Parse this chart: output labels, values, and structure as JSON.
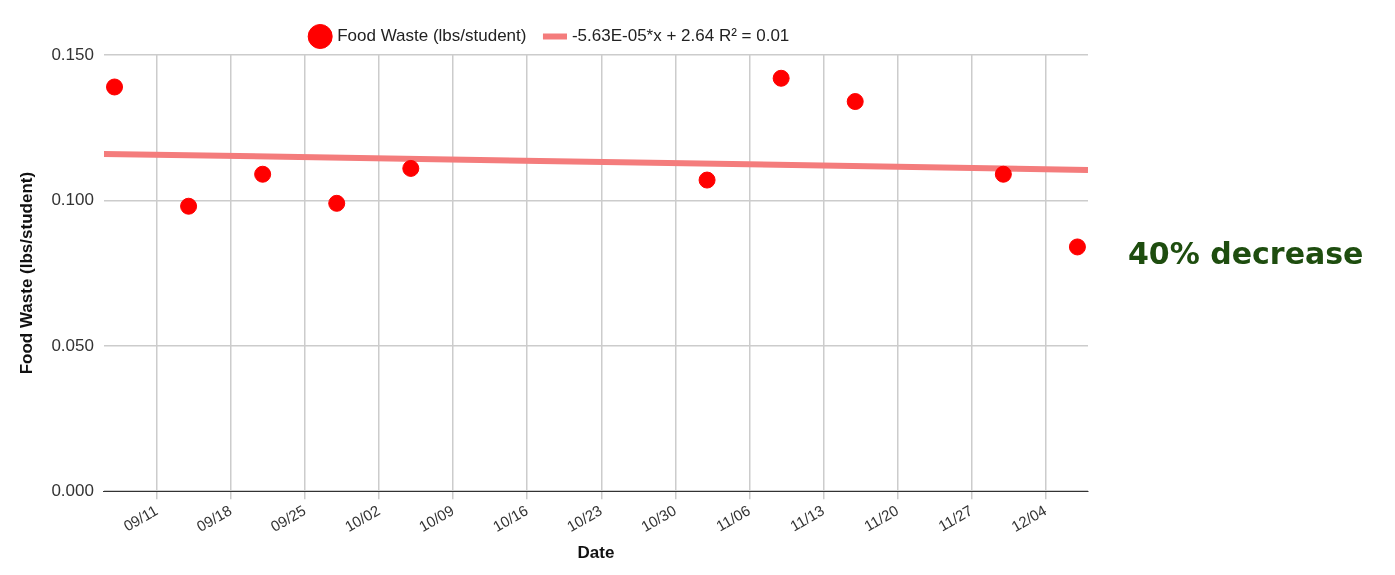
{
  "chart_data": {
    "type": "scatter",
    "xlabel": "Date",
    "ylabel": "Food Waste (lbs/student)",
    "xlim": [
      "--09-06",
      "--12-08"
    ],
    "xticks": [
      {
        "value": "--09-11",
        "label": "09/11"
      },
      {
        "value": "--09-18",
        "label": "09/18"
      },
      {
        "value": "--09-25",
        "label": "09/25"
      },
      {
        "value": "--10-02",
        "label": "10/02"
      },
      {
        "value": "--10-09",
        "label": "10/09"
      },
      {
        "value": "--10-16",
        "label": "10/16"
      },
      {
        "value": "--10-23",
        "label": "10/23"
      },
      {
        "value": "--10-30",
        "label": "10/30"
      },
      {
        "value": "--11-06",
        "label": "11/06"
      },
      {
        "value": "--11-13",
        "label": "11/13"
      },
      {
        "value": "--11-20",
        "label": "11/20"
      },
      {
        "value": "--11-27",
        "label": "11/27"
      },
      {
        "value": "--12-04",
        "label": "12/04"
      }
    ],
    "ylim": [
      0,
      0.15
    ],
    "yticks": [
      {
        "value": 0,
        "label": "0.000"
      },
      {
        "value": 0.05,
        "label": "0.050"
      },
      {
        "value": 0.1,
        "label": "0.100"
      },
      {
        "value": 0.15,
        "label": "0.150"
      }
    ],
    "grid": true,
    "legend": "top",
    "marker": "circle",
    "series": [
      {
        "name": "Food Waste (lbs/student)",
        "color": "#ff0000",
        "x": [
          "--09-07",
          "--09-14",
          "--09-21",
          "--09-28",
          "--10-05",
          "--11-02",
          "--11-09",
          "--11-16",
          "--11-30",
          "--12-07"
        ],
        "values": [
          0.139,
          0.098,
          0.109,
          0.099,
          0.111,
          0.107,
          0.142,
          0.134,
          0.109,
          0.084
        ]
      },
      {
        "name": "-5.63E-05*x + 2.64 R² = 0.01",
        "type": "line",
        "marker": "none",
        "color": "#f47c7c",
        "x": [
          "--09-06",
          "--12-08"
        ],
        "values": [
          0.116,
          0.1105
        ]
      }
    ],
    "annotations": [
      "40% decrease"
    ]
  }
}
